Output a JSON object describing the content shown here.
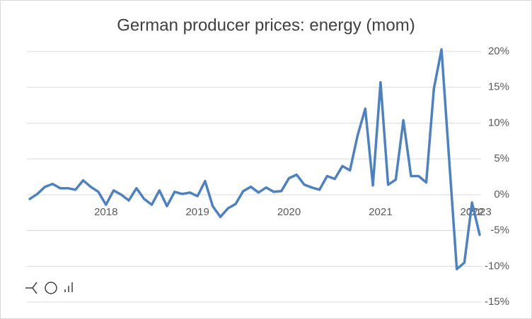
{
  "chart_data": {
    "type": "line",
    "title": "German producer prices: energy (mom)",
    "categories": [
      null,
      null,
      null,
      null,
      null,
      null,
      null,
      null,
      null,
      null,
      "2018",
      null,
      null,
      null,
      null,
      null,
      null,
      null,
      null,
      null,
      null,
      null,
      "2019",
      null,
      null,
      null,
      null,
      null,
      null,
      null,
      null,
      null,
      null,
      null,
      "2020",
      null,
      null,
      null,
      null,
      null,
      null,
      null,
      null,
      null,
      null,
      null,
      "2021",
      null,
      null,
      null,
      null,
      null,
      null,
      null,
      null,
      null,
      null,
      null,
      "2022",
      "2023"
    ],
    "series": [
      {
        "name": "energy",
        "color": "#4e81bd",
        "values": [
          -0.6,
          0.1,
          1.1,
          1.5,
          0.9,
          0.9,
          0.7,
          2.0,
          1.1,
          0.4,
          -1.4,
          0.6,
          0,
          -0.8,
          0.9,
          -0.6,
          -1.4,
          0.6,
          -1.6,
          0.4,
          0.1,
          0.3,
          -0.2,
          1.9,
          -1.6,
          -3.1,
          -1.9,
          -1.3,
          0.5,
          1.1,
          0.3,
          1.0,
          0.4,
          0.5,
          2.3,
          2.8,
          1.4,
          1.0,
          0.7,
          2.6,
          2.2,
          4.0,
          3.4,
          8.3,
          12.0,
          1.3,
          15.7,
          1.4,
          2.1,
          10.4,
          2.6,
          2.6,
          1.7,
          14.8,
          20.3,
          4.9,
          -10.4,
          -9.5,
          -1.1,
          -5.6
        ]
      }
    ],
    "ylim": [
      -15,
      20
    ],
    "yticks": [
      {
        "value": 20,
        "label": "20%"
      },
      {
        "value": 15,
        "label": "15%"
      },
      {
        "value": 10,
        "label": "10%"
      },
      {
        "value": 5,
        "label": "5%"
      },
      {
        "value": 0,
        "label": "0%"
      },
      {
        "value": -5,
        "label": "-5%"
      },
      {
        "value": -10,
        "label": "-10%"
      },
      {
        "value": -15,
        "label": "-15%"
      }
    ],
    "grid": true
  }
}
